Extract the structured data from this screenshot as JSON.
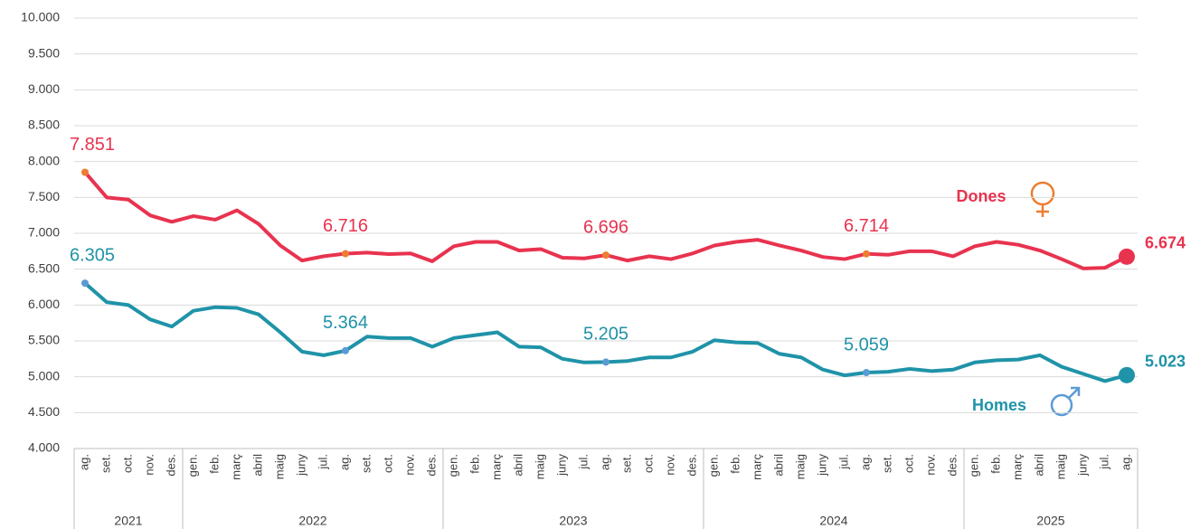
{
  "chart_data": {
    "type": "line",
    "categories": [
      "ag.",
      "set.",
      "oct.",
      "nov.",
      "des.",
      "gen.",
      "feb.",
      "març",
      "abril",
      "maig",
      "juny",
      "jul.",
      "ag.",
      "set.",
      "oct.",
      "nov.",
      "des.",
      "gen.",
      "feb.",
      "març",
      "abril",
      "maig",
      "juny",
      "jul.",
      "ag.",
      "set.",
      "oct.",
      "nov.",
      "des.",
      "gen.",
      "feb.",
      "març",
      "abril",
      "maig",
      "juny",
      "jul.",
      "ag.",
      "set.",
      "oct.",
      "nov.",
      "des.",
      "gen.",
      "feb.",
      "març",
      "abril",
      "maig",
      "juny",
      "jul.",
      "ag."
    ],
    "years": [
      "2021",
      "2021",
      "2021",
      "2021",
      "2021",
      "2022",
      "2022",
      "2022",
      "2022",
      "2022",
      "2022",
      "2022",
      "2022",
      "2022",
      "2022",
      "2022",
      "2022",
      "2023",
      "2023",
      "2023",
      "2023",
      "2023",
      "2023",
      "2023",
      "2023",
      "2023",
      "2023",
      "2023",
      "2023",
      "2024",
      "2024",
      "2024",
      "2024",
      "2024",
      "2024",
      "2024",
      "2024",
      "2024",
      "2024",
      "2024",
      "2024",
      "2025",
      "2025",
      "2025",
      "2025",
      "2025",
      "2025",
      "2025",
      "2025"
    ],
    "series": [
      {
        "name": "Dones",
        "color": "#e8334f",
        "marker_color": "#ed7d31",
        "values": [
          7851,
          7500,
          7470,
          7250,
          7160,
          7240,
          7190,
          7320,
          7130,
          6830,
          6620,
          6680,
          6716,
          6730,
          6710,
          6720,
          6610,
          6820,
          6880,
          6880,
          6760,
          6780,
          6660,
          6650,
          6696,
          6620,
          6680,
          6640,
          6720,
          6830,
          6880,
          6910,
          6830,
          6760,
          6670,
          6640,
          6714,
          6700,
          6750,
          6750,
          6680,
          6820,
          6880,
          6840,
          6760,
          6640,
          6510,
          6520,
          6674
        ],
        "value_labels": [
          "7.851",
          null,
          null,
          null,
          null,
          null,
          null,
          null,
          null,
          null,
          null,
          null,
          "6.716",
          null,
          null,
          null,
          null,
          null,
          null,
          null,
          null,
          null,
          null,
          null,
          "6.696",
          null,
          null,
          null,
          null,
          null,
          null,
          null,
          null,
          null,
          null,
          null,
          "6.714",
          null,
          null,
          null,
          null,
          null,
          null,
          null,
          null,
          null,
          null,
          null,
          "6.674"
        ]
      },
      {
        "name": "Homes",
        "color": "#1f93a8",
        "marker_color": "#5b9bd5",
        "values": [
          6305,
          6040,
          6000,
          5800,
          5700,
          5920,
          5970,
          5960,
          5870,
          5620,
          5350,
          5300,
          5364,
          5560,
          5540,
          5540,
          5420,
          5540,
          5580,
          5620,
          5420,
          5410,
          5250,
          5200,
          5205,
          5220,
          5270,
          5270,
          5350,
          5510,
          5480,
          5470,
          5320,
          5270,
          5100,
          5020,
          5059,
          5070,
          5110,
          5080,
          5100,
          5200,
          5230,
          5240,
          5300,
          5140,
          5040,
          4940,
          5023
        ],
        "value_labels": [
          "6.305",
          null,
          null,
          null,
          null,
          null,
          null,
          null,
          null,
          null,
          null,
          null,
          "5.364",
          null,
          null,
          null,
          null,
          null,
          null,
          null,
          null,
          null,
          null,
          null,
          "5.205",
          null,
          null,
          null,
          null,
          null,
          null,
          null,
          null,
          null,
          null,
          null,
          "5.059",
          null,
          null,
          null,
          null,
          null,
          null,
          null,
          null,
          null,
          null,
          null,
          "5.023"
        ]
      }
    ],
    "ylim": [
      4000,
      10000
    ],
    "yticks": [
      {
        "value": 4000,
        "label": "4.000"
      },
      {
        "value": 4500,
        "label": "4.500"
      },
      {
        "value": 5000,
        "label": "5.000"
      },
      {
        "value": 5500,
        "label": "5.500"
      },
      {
        "value": 6000,
        "label": "6.000"
      },
      {
        "value": 6500,
        "label": "6.500"
      },
      {
        "value": 7000,
        "label": "7.000"
      },
      {
        "value": 7500,
        "label": "7.500"
      },
      {
        "value": 8000,
        "label": "8.000"
      },
      {
        "value": 8500,
        "label": "8.500"
      },
      {
        "value": 9000,
        "label": "9.000"
      },
      {
        "value": 9500,
        "label": "9.500"
      },
      {
        "value": 10000,
        "label": "10.000"
      }
    ],
    "grid": true
  }
}
